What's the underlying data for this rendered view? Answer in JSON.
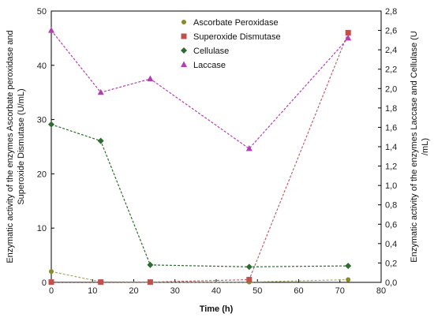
{
  "chart_data": {
    "type": "line",
    "xlabel": "Time (h)",
    "ylabel_left_line1": "Enzymatic activity of the enzymes Ascorbate peroxidase and",
    "ylabel_left_line2": "Superoxide Dismutase (U/mL)",
    "ylabel_right_line1": "Enzymatic activity of the enzymes Laccase and Cellulase (U",
    "ylabel_right_line2": "/mL)",
    "xlim": [
      0,
      80
    ],
    "ylim_left": [
      0,
      50
    ],
    "ylim_right": [
      0,
      2.8
    ],
    "xticks": [
      "0",
      "10",
      "20",
      "30",
      "40",
      "50",
      "60",
      "70",
      "80"
    ],
    "yticks_left": [
      "0",
      "10",
      "20",
      "30",
      "40",
      "50"
    ],
    "yticks_right": [
      "0,0",
      "0,2",
      "0,4",
      "0,6",
      "0,8",
      "1,0",
      "1,2",
      "1,4",
      "1,6",
      "1,8",
      "2,0",
      "2,2",
      "2,4",
      "2,6",
      "2,8"
    ],
    "legend_position": "top-right",
    "series": [
      {
        "name": "Ascorbate Peroxidase",
        "axis": "left",
        "marker": "circle",
        "color": "#8a8a2a",
        "line_color": "#a8a868",
        "x": [
          0,
          12,
          24,
          48,
          72
        ],
        "values": [
          2.0,
          0.1,
          0.05,
          0.05,
          0.5
        ]
      },
      {
        "name": "Superoxide Dismutase",
        "axis": "left",
        "marker": "square",
        "color": "#c0504d",
        "line_color": "#c06070",
        "x": [
          0,
          12,
          24,
          48,
          72
        ],
        "values": [
          0.05,
          0.05,
          0.05,
          0.5,
          46.0
        ]
      },
      {
        "name": "Cellulase",
        "axis": "right",
        "marker": "diamond",
        "color": "#2e6b2e",
        "line_color": "#2e6b2e",
        "x": [
          0,
          12,
          24,
          48,
          72
        ],
        "values": [
          1.63,
          1.46,
          0.18,
          0.16,
          0.17
        ]
      },
      {
        "name": "Laccase",
        "axis": "right",
        "marker": "triangle",
        "color": "#b43cb4",
        "line_color": "#b43cb4",
        "x": [
          0,
          12,
          24,
          48,
          72
        ],
        "values": [
          2.6,
          1.96,
          2.1,
          1.38,
          2.52
        ]
      }
    ]
  }
}
